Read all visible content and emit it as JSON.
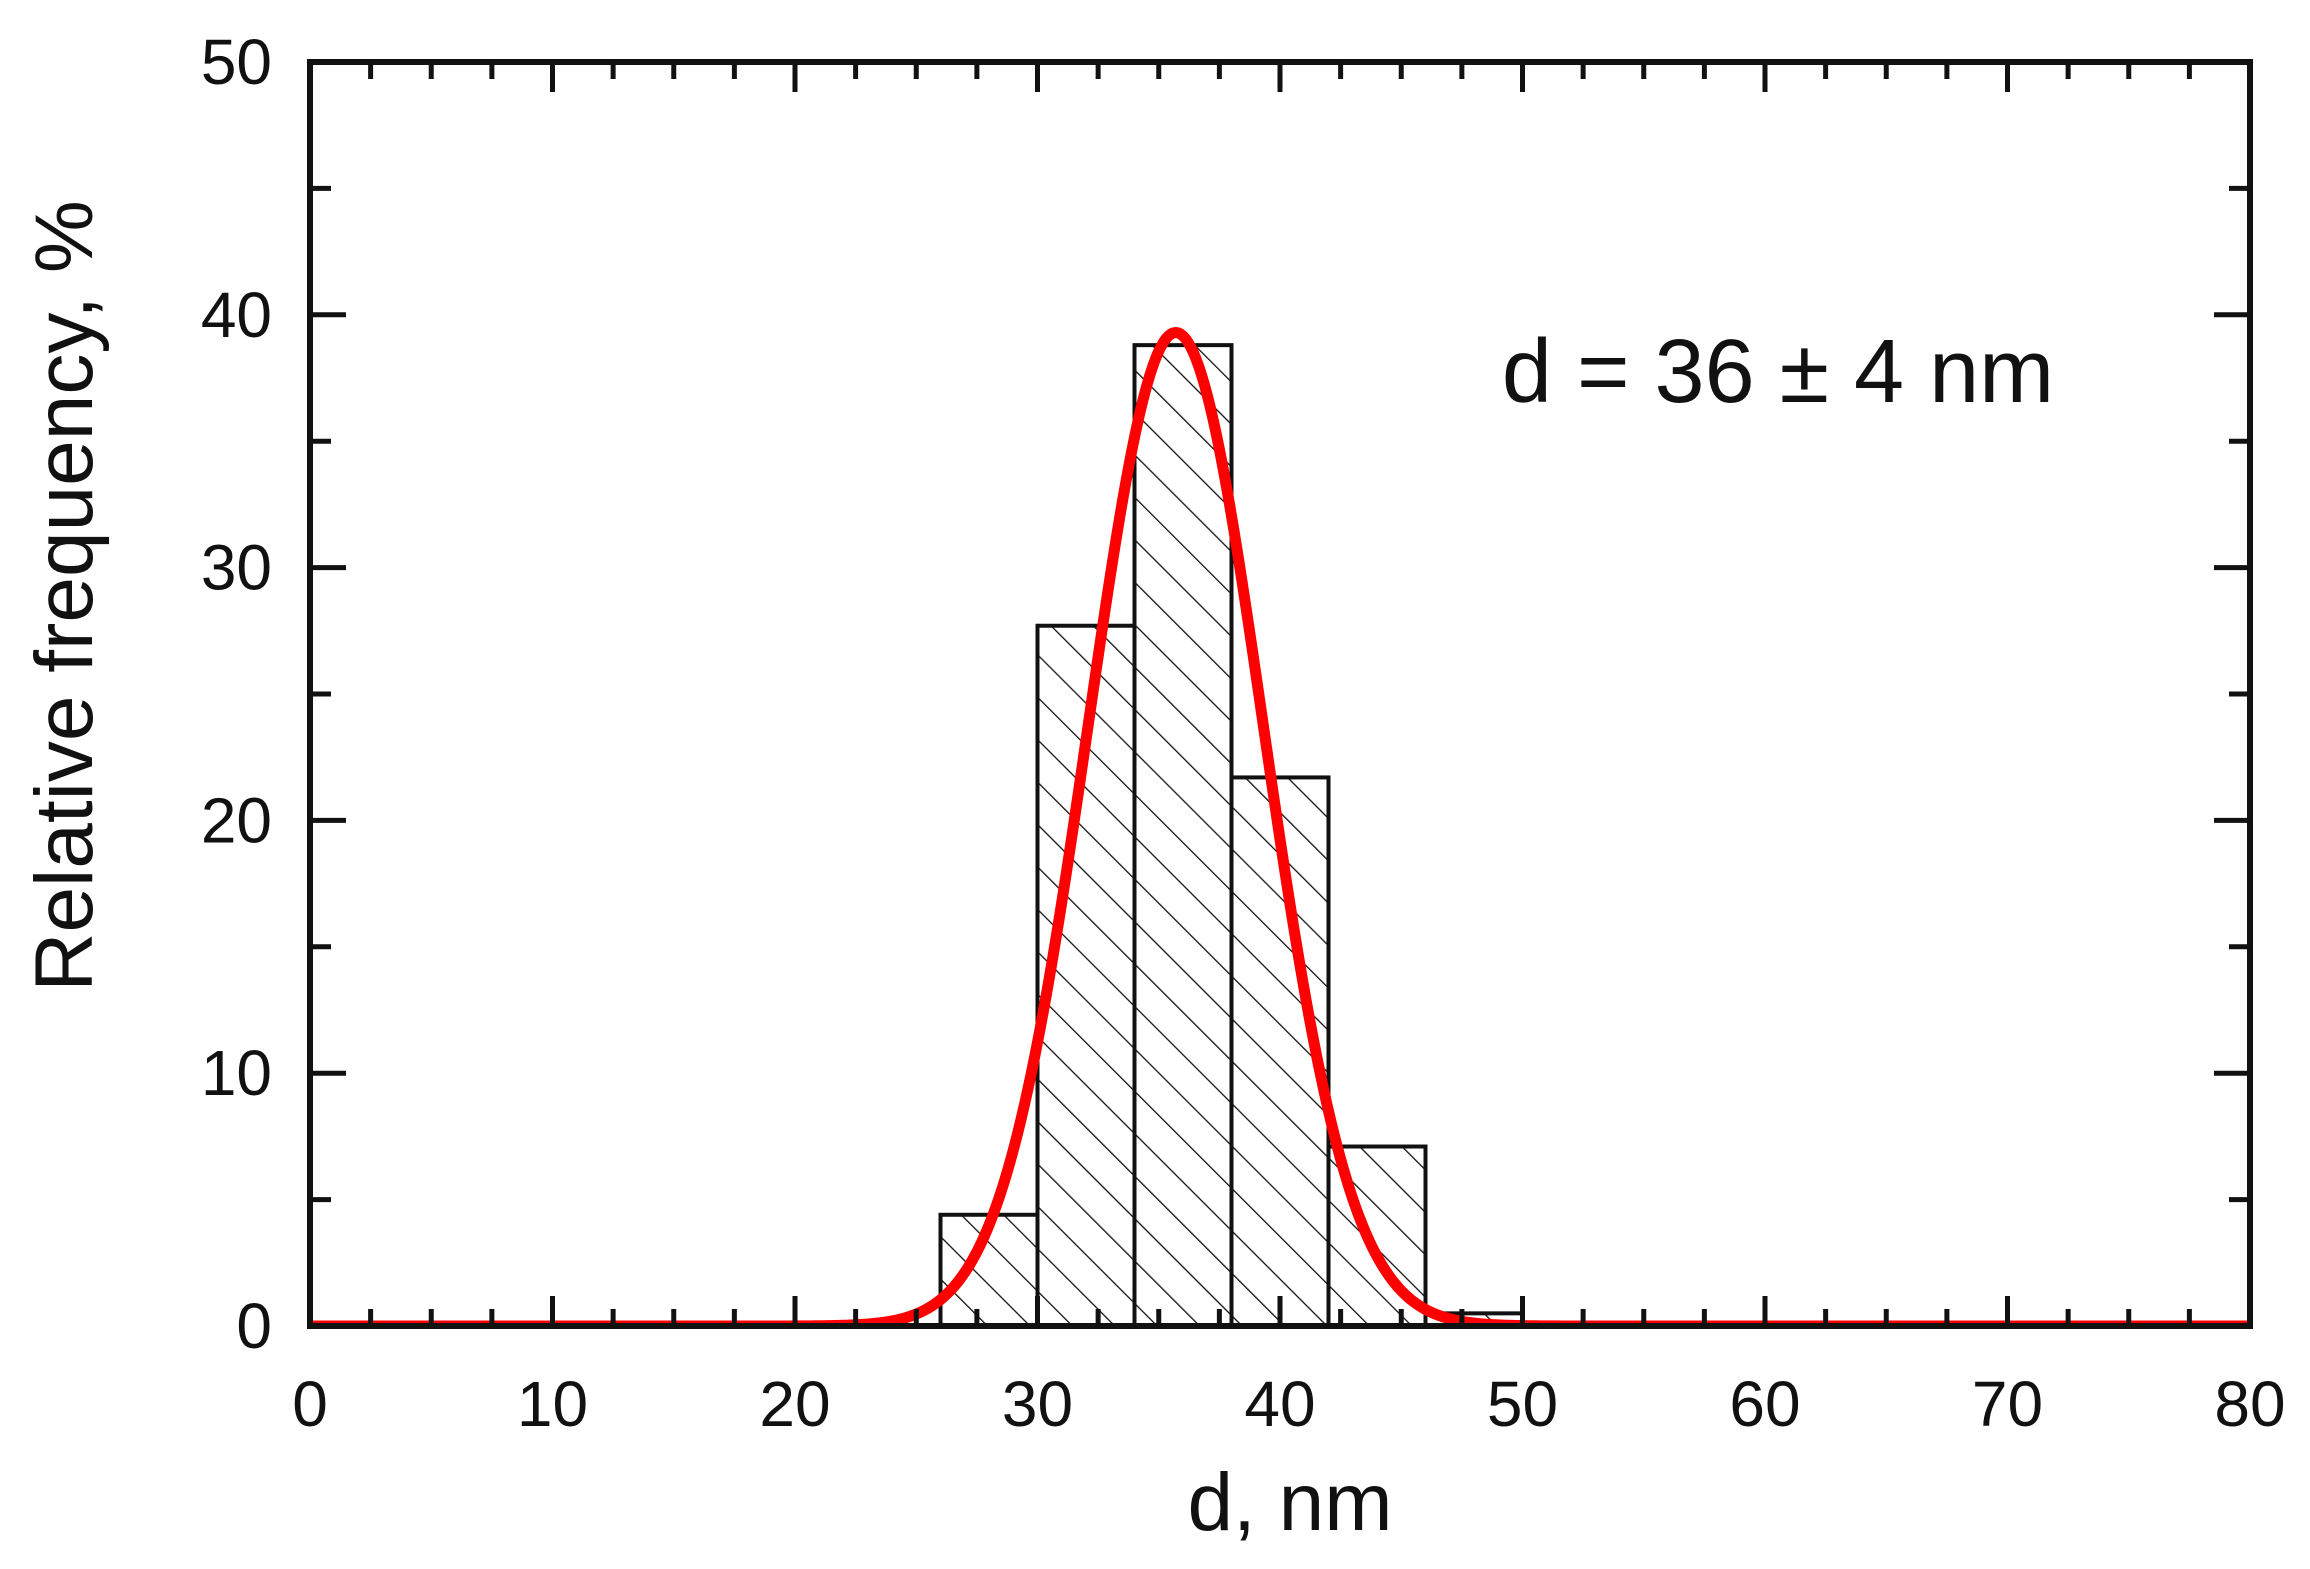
{
  "chart_data": {
    "type": "bar",
    "xlabel": "d, nm",
    "ylabel": "Relative frequency, %",
    "xlim": [
      0,
      80
    ],
    "ylim": [
      0,
      50
    ],
    "x_ticks": [
      0,
      10,
      20,
      30,
      40,
      50,
      60,
      70,
      80
    ],
    "y_ticks": [
      0,
      10,
      20,
      30,
      40,
      50
    ],
    "grid": false,
    "annotation": "d = 36 ± 4 nm",
    "bars": [
      {
        "x0": 26,
        "x1": 30,
        "value": 4.4
      },
      {
        "x0": 30,
        "x1": 34,
        "value": 27.7
      },
      {
        "x0": 34,
        "x1": 38,
        "value": 38.8
      },
      {
        "x0": 38,
        "x1": 42,
        "value": 21.7
      },
      {
        "x0": 42,
        "x1": 46,
        "value": 7.1
      },
      {
        "x0": 46,
        "x1": 50,
        "value": 0.5
      }
    ],
    "bar_fill": "diagonal hatch",
    "fit_curve": {
      "type": "gaussian",
      "mean": 35.7,
      "sigma": 3.6,
      "amplitude": 39.3,
      "color": "#ff0000"
    }
  }
}
